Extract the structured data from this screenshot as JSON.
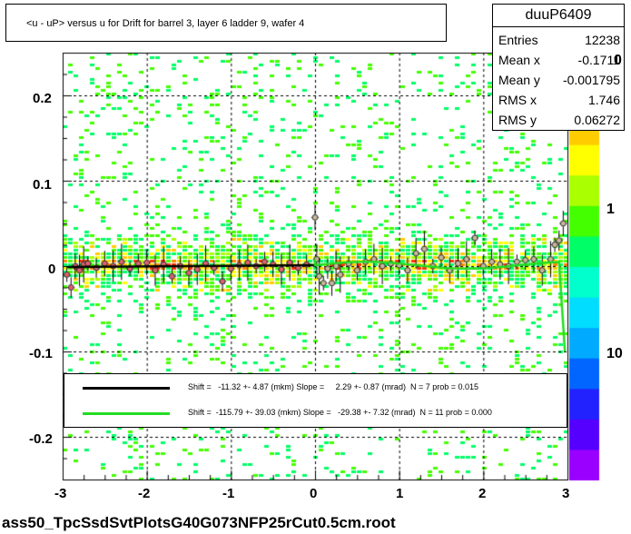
{
  "chart_data": {
    "type": "scatter",
    "title": "<u - uP>       versus   u for Drift for barrel 3, layer 6 ladder 9, wafer 4",
    "xlim": [
      -3,
      3
    ],
    "ylim": [
      -0.25,
      0.25
    ],
    "x_ticks": [
      "-3",
      "-2",
      "-1",
      "0",
      "1",
      "2",
      "3"
    ],
    "y_ticks": [
      "0.2",
      "0.1",
      "0",
      "-0.1",
      "-0.2"
    ],
    "y_tick_values": [
      0.2,
      0.1,
      0,
      -0.1,
      -0.2
    ],
    "x_tick_values": [
      -3,
      -2,
      -1,
      0,
      1,
      2,
      3
    ],
    "grid": true,
    "color_scale": {
      "type": "log",
      "labels": [
        "1",
        "10"
      ],
      "clipped_top_label": "0"
    },
    "stats": {
      "name": "duuP6409",
      "rows": [
        {
          "label": "Entries",
          "value": "12238"
        },
        {
          "label": "Mean x",
          "value": "-0.1711"
        },
        {
          "label": "Mean y",
          "value": "-0.001795"
        },
        {
          "label": "RMS x",
          "value": "1.746"
        },
        {
          "label": "RMS y",
          "value": "0.06272"
        }
      ]
    },
    "fits": [
      {
        "color": "#000000",
        "text": "Shift =   -11.32 +- 4.87 (mkm) Slope =     2.29 +- 0.87 (mrad)  N = 7 prob = 0.015"
      },
      {
        "color": "#22dd22",
        "text": "Shift =  -115.79 +- 39.03 (mkm) Slope =   -29.38 +- 7.32 (mrad)  N = 11 prob = 0.000"
      }
    ],
    "profile_points": [
      [
        -2.95,
        -0.01
      ],
      [
        -2.9,
        -0.025
      ],
      [
        -2.85,
        0.0
      ],
      [
        -2.8,
        -0.005
      ],
      [
        -2.75,
        0.002
      ],
      [
        -2.7,
        0.003
      ],
      [
        -2.6,
        -0.002
      ],
      [
        -2.5,
        0.003
      ],
      [
        -2.4,
        0.0
      ],
      [
        -2.3,
        0.005
      ],
      [
        -2.2,
        -0.003
      ],
      [
        -2.1,
        0.003
      ],
      [
        -2.0,
        0.004
      ],
      [
        -1.9,
        -0.005
      ],
      [
        -1.8,
        0.002
      ],
      [
        -1.7,
        -0.012
      ],
      [
        -1.6,
        0.0
      ],
      [
        -1.5,
        -0.008
      ],
      [
        -1.4,
        -0.004
      ],
      [
        -1.3,
        0.003
      ],
      [
        -1.2,
        -0.002
      ],
      [
        -1.1,
        -0.018
      ],
      [
        -1.0,
        -0.003
      ],
      [
        -0.9,
        0.001
      ],
      [
        -0.8,
        0.004
      ],
      [
        -0.7,
        0.0
      ],
      [
        -0.6,
        0.005
      ],
      [
        -0.5,
        0.002
      ],
      [
        -0.4,
        -0.004
      ],
      [
        -0.3,
        0.004
      ],
      [
        -0.2,
        -0.002
      ],
      [
        -0.1,
        0.002
      ],
      [
        0.0,
        0.057
      ],
      [
        0.02,
        0.008
      ],
      [
        0.05,
        -0.012
      ],
      [
        0.1,
        -0.02
      ],
      [
        0.15,
        -0.003
      ],
      [
        0.2,
        -0.02
      ],
      [
        0.25,
        0.0
      ],
      [
        0.3,
        -0.01
      ],
      [
        0.4,
        0.003
      ],
      [
        0.5,
        -0.005
      ],
      [
        0.6,
        0.005
      ],
      [
        0.7,
        0.008
      ],
      [
        0.8,
        0.0
      ],
      [
        0.9,
        0.003
      ],
      [
        1.0,
        0.001
      ],
      [
        1.1,
        -0.005
      ],
      [
        1.2,
        0.015
      ],
      [
        1.3,
        0.02
      ],
      [
        1.4,
        0.0
      ],
      [
        1.5,
        0.01
      ],
      [
        1.6,
        -0.005
      ],
      [
        1.7,
        0.003
      ],
      [
        1.8,
        0.008
      ],
      [
        1.9,
        0.033
      ],
      [
        2.0,
        0.0
      ],
      [
        2.1,
        0.005
      ],
      [
        2.2,
        0.002
      ],
      [
        2.3,
        0.0
      ],
      [
        2.4,
        0.005
      ],
      [
        2.5,
        0.007
      ],
      [
        2.6,
        0.008
      ],
      [
        2.7,
        -0.005
      ],
      [
        2.8,
        0.008
      ],
      [
        2.85,
        0.025
      ],
      [
        2.9,
        0.03
      ],
      [
        2.95,
        0.05
      ]
    ]
  },
  "bottom_label": "ass50_TpcSsdSvtPlotsG40G073NFP25rCut0.5cm.root",
  "colors": {
    "palette": [
      "#9900ff",
      "#5500ff",
      "#2222ff",
      "#0066ff",
      "#00aaff",
      "#00ddff",
      "#00ffcc",
      "#00ff66",
      "#44ff00",
      "#aaff00",
      "#ffff00",
      "#ffcc00",
      "#ff8800",
      "#ff3300"
    ]
  }
}
